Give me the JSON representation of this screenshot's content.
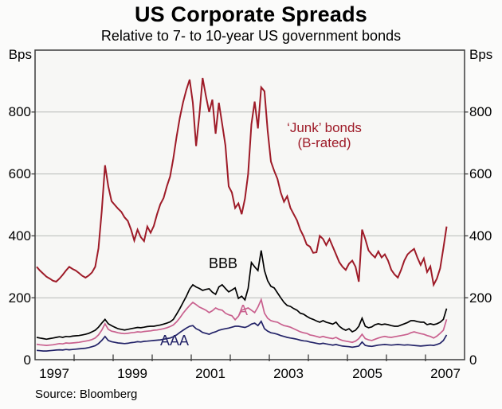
{
  "header": {
    "title": "US Corporate Spreads",
    "subtitle": "Relative to 7- to 10-year US government bonds"
  },
  "axes": {
    "unit": "Bps",
    "y_tick_labels": [
      "800",
      "600",
      "400",
      "200",
      "0"
    ],
    "x_tick_labels": [
      "1997",
      "1999",
      "2001",
      "2003",
      "2005",
      "2007"
    ]
  },
  "annotations": {
    "junk_line1": "‘Junk’ bonds",
    "junk_line2": "(B-rated)",
    "bbb": "BBB",
    "a": "A",
    "aaa": "AAA"
  },
  "footer": {
    "source": "Source: Bloomberg"
  },
  "chart_data": {
    "type": "line",
    "title": "US Corporate Spreads",
    "subtitle": "Relative to 7- to 10-year US government bonds",
    "ylabel": "Bps",
    "x_range": [
      1997,
      2008
    ],
    "y_range": [
      0,
      1000
    ],
    "y_gridlines": [
      200,
      400,
      600,
      800
    ],
    "y_tick_values": [
      0,
      200,
      400,
      600,
      800
    ],
    "x_minor_tick_years": [
      1998,
      1999,
      2000,
      2001,
      2002,
      2003,
      2004,
      2005,
      2006,
      2007
    ],
    "x_label_positions": [
      1997.5,
      1999.5,
      2001.5,
      2003.5,
      2005.5,
      2007.5
    ],
    "grid": true,
    "legend_position": "inline-annotations",
    "frequency": "monthly",
    "x_start": 1997.0417,
    "x_step": 0.08333,
    "series": [
      {
        "name": "'Junk' bonds (B-rated)",
        "color": "#9E1B28",
        "width": 2.0,
        "values": [
          300,
          288,
          278,
          268,
          262,
          255,
          252,
          262,
          274,
          288,
          300,
          293,
          288,
          280,
          271,
          265,
          272,
          282,
          300,
          360,
          480,
          628,
          560,
          512,
          500,
          488,
          478,
          460,
          448,
          420,
          385,
          420,
          396,
          383,
          430,
          410,
          432,
          470,
          502,
          522,
          560,
          592,
          650,
          720,
          782,
          832,
          872,
          905,
          830,
          690,
          790,
          910,
          852,
          800,
          840,
          730,
          830,
          762,
          692,
          560,
          540,
          490,
          505,
          470,
          520,
          600,
          760,
          834,
          747,
          880,
          867,
          740,
          640,
          610,
          584,
          540,
          510,
          528,
          490,
          470,
          450,
          420,
          399,
          372,
          365,
          345,
          347,
          400,
          390,
          370,
          390,
          365,
          340,
          315,
          300,
          290,
          310,
          320,
          300,
          252,
          420,
          390,
          353,
          340,
          330,
          350,
          330,
          340,
          320,
          290,
          275,
          265,
          290,
          320,
          340,
          350,
          358,
          330,
          306,
          327,
          283,
          301,
          242,
          262,
          295,
          360,
          430
        ]
      },
      {
        "name": "A",
        "color": "#C9608E",
        "width": 1.7,
        "values": [
          50,
          48,
          47,
          46,
          47,
          48,
          50,
          52,
          51,
          54,
          53,
          54,
          55,
          56,
          58,
          60,
          62,
          65,
          70,
          80,
          95,
          116,
          98,
          92,
          90,
          87,
          85,
          84,
          85,
          87,
          88,
          90,
          89,
          91,
          92,
          93,
          95,
          96,
          98,
          100,
          103,
          107,
          112,
          122,
          135,
          150,
          163,
          175,
          185,
          178,
          170,
          165,
          160,
          152,
          158,
          167,
          162,
          160,
          150,
          145,
          142,
          129,
          140,
          160,
          163,
          167,
          160,
          152,
          170,
          194,
          150,
          134,
          126,
          123,
          121,
          115,
          110,
          108,
          105,
          100,
          95,
          90,
          87,
          85,
          80,
          78,
          75,
          72,
          75,
          72,
          70,
          68,
          72,
          66,
          62,
          60,
          58,
          56,
          60,
          68,
          82,
          68,
          64,
          62,
          66,
          70,
          73,
          75,
          73,
          72,
          74,
          76,
          78,
          80,
          82,
          87,
          90,
          87,
          84,
          82,
          78,
          75,
          70,
          76,
          85,
          95,
          130
        ]
      },
      {
        "name": "AAA",
        "color": "#232368",
        "width": 1.7,
        "values": [
          30,
          29,
          28,
          28,
          29,
          30,
          31,
          32,
          31,
          33,
          32,
          33,
          34,
          35,
          36,
          37,
          39,
          42,
          45,
          52,
          62,
          75,
          62,
          58,
          56,
          54,
          53,
          52,
          53,
          55,
          56,
          58,
          57,
          59,
          60,
          61,
          62,
          63,
          64,
          66,
          68,
          70,
          74,
          80,
          88,
          95,
          102,
          108,
          110,
          100,
          95,
          88,
          85,
          82,
          87,
          90,
          95,
          98,
          100,
          102,
          105,
          108,
          108,
          106,
          104,
          108,
          115,
          118,
          110,
          124,
          100,
          92,
          87,
          85,
          82,
          78,
          75,
          72,
          70,
          68,
          66,
          63,
          61,
          60,
          57,
          55,
          53,
          51,
          53,
          51,
          49,
          47,
          49,
          46,
          44,
          43,
          42,
          40,
          42,
          44,
          57,
          46,
          44,
          43,
          45,
          47,
          48,
          49,
          48,
          47,
          48,
          49,
          48,
          47,
          48,
          47,
          46,
          45,
          44,
          45,
          46,
          47,
          46,
          49,
          53,
          62,
          80
        ]
      },
      {
        "name": "BBB",
        "color": "#000000",
        "width": 1.7,
        "values": [
          72,
          70,
          68,
          66,
          68,
          70,
          72,
          74,
          72,
          75,
          74,
          76,
          77,
          78,
          80,
          82,
          85,
          90,
          95,
          105,
          118,
          130,
          116,
          110,
          105,
          100,
          98,
          96,
          98,
          100,
          102,
          104,
          103,
          105,
          107,
          108,
          108,
          110,
          112,
          115,
          118,
          122,
          130,
          147,
          165,
          185,
          205,
          228,
          242,
          235,
          230,
          224,
          227,
          229,
          218,
          211,
          235,
          242,
          230,
          219,
          225,
          232,
          198,
          205,
          193,
          230,
          314,
          300,
          288,
          353,
          288,
          255,
          237,
          232,
          216,
          200,
          185,
          175,
          172,
          165,
          160,
          150,
          147,
          140,
          134,
          130,
          125,
          121,
          126,
          121,
          118,
          115,
          121,
          108,
          100,
          95,
          100,
          90,
          95,
          108,
          134,
          108,
          103,
          106,
          113,
          116,
          113,
          115,
          113,
          110,
          108,
          108,
          112,
          116,
          120,
          126,
          126,
          123,
          121,
          121,
          113,
          116,
          113,
          116,
          121,
          130,
          165
        ]
      }
    ],
    "colors": {
      "frame": "#3C3C3C",
      "gridline": "#B7BAB8",
      "plot_background": "#F7F7F5"
    }
  }
}
